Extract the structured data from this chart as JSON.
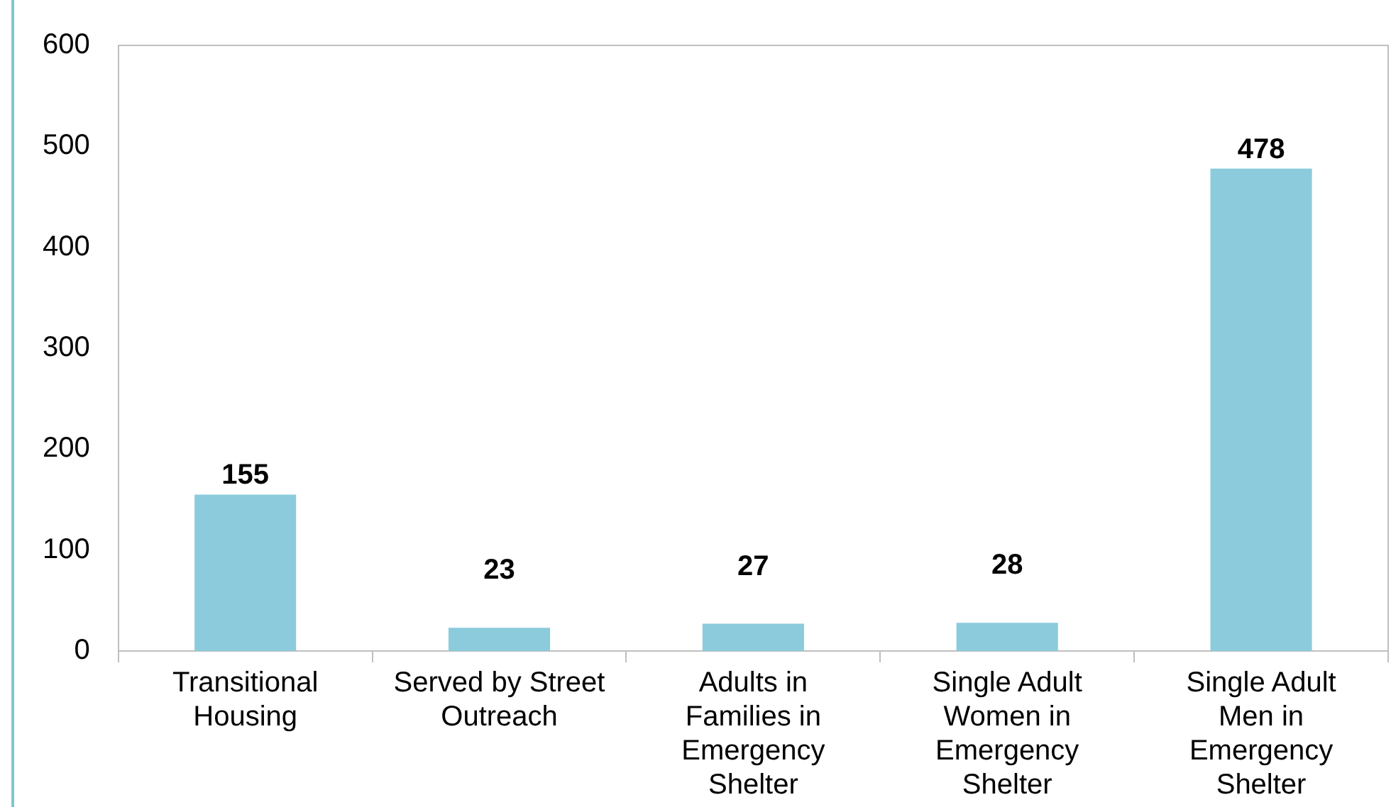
{
  "chart_data": {
    "type": "bar",
    "categories": [
      "Transitional Housing",
      "Served by Street Outreach",
      "Adults in Families in Emergency Shelter",
      "Single Adult Women in Emergency Shelter",
      "Single Adult Men in Emergency Shelter"
    ],
    "values": [
      155,
      23,
      27,
      28,
      478
    ],
    "color": "#8ccbdc",
    "ylim": [
      0,
      600
    ],
    "yticks": [
      0,
      100,
      200,
      300,
      400,
      500,
      600
    ],
    "grid": false,
    "data_labels": true
  }
}
